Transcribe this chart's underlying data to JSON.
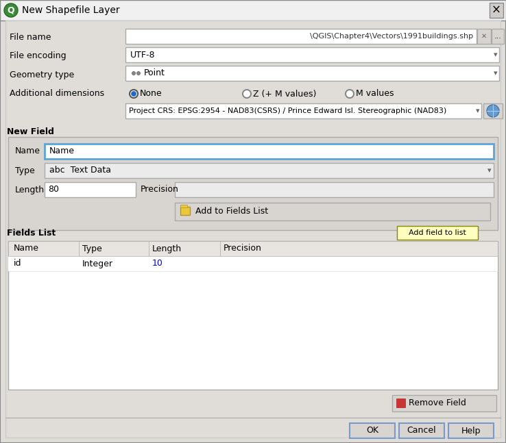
{
  "title": "New Shapefile Layer",
  "bg_color": "#e0ddd8",
  "dialog_bg": "#e0ddd8",
  "white": "#ffffff",
  "light_gray": "#ebebeb",
  "header_gray": "#e8e5e0",
  "border_color": "#a0a0a0",
  "blue_border": "#5ba3d9",
  "blue_text": "#0000cc",
  "file_name_value": "\\QGIS\\Chapter4\\Vectors\\1991buildings.shp",
  "file_encoding_value": "UTF-8",
  "geometry_type_value": "Point",
  "crs_value": "Project CRS: EPSG:2954 - NAD83(CSRS) / Prince Edward Isl. Stereographic (NAD83)",
  "name_field_value": "Name",
  "type_field_value": "abc  Text Data",
  "length_value": "80",
  "fields_list_headers": [
    "Name",
    "Type",
    "Length",
    "Precision"
  ],
  "fields_list_row": [
    "id",
    "Integer",
    "10",
    ""
  ],
  "tooltip_text": "Add field to list",
  "add_button_text": "Add to Fields List",
  "remove_button_text": "Remove Field",
  "ok_text": "OK",
  "cancel_text": "Cancel",
  "help_text": "Help",
  "section_new_field": "New Field",
  "section_fields_list": "Fields List",
  "label_file_name": "File name",
  "label_file_encoding": "File encoding",
  "label_geometry_type": "Geometry type",
  "label_additional_dim": "Additional dimensions",
  "label_name": "Name",
  "label_type": "Type",
  "label_length": "Length",
  "label_precision": "Precision",
  "radio_none": "None",
  "radio_z": "Z (+ M values)",
  "radio_m": "M values"
}
